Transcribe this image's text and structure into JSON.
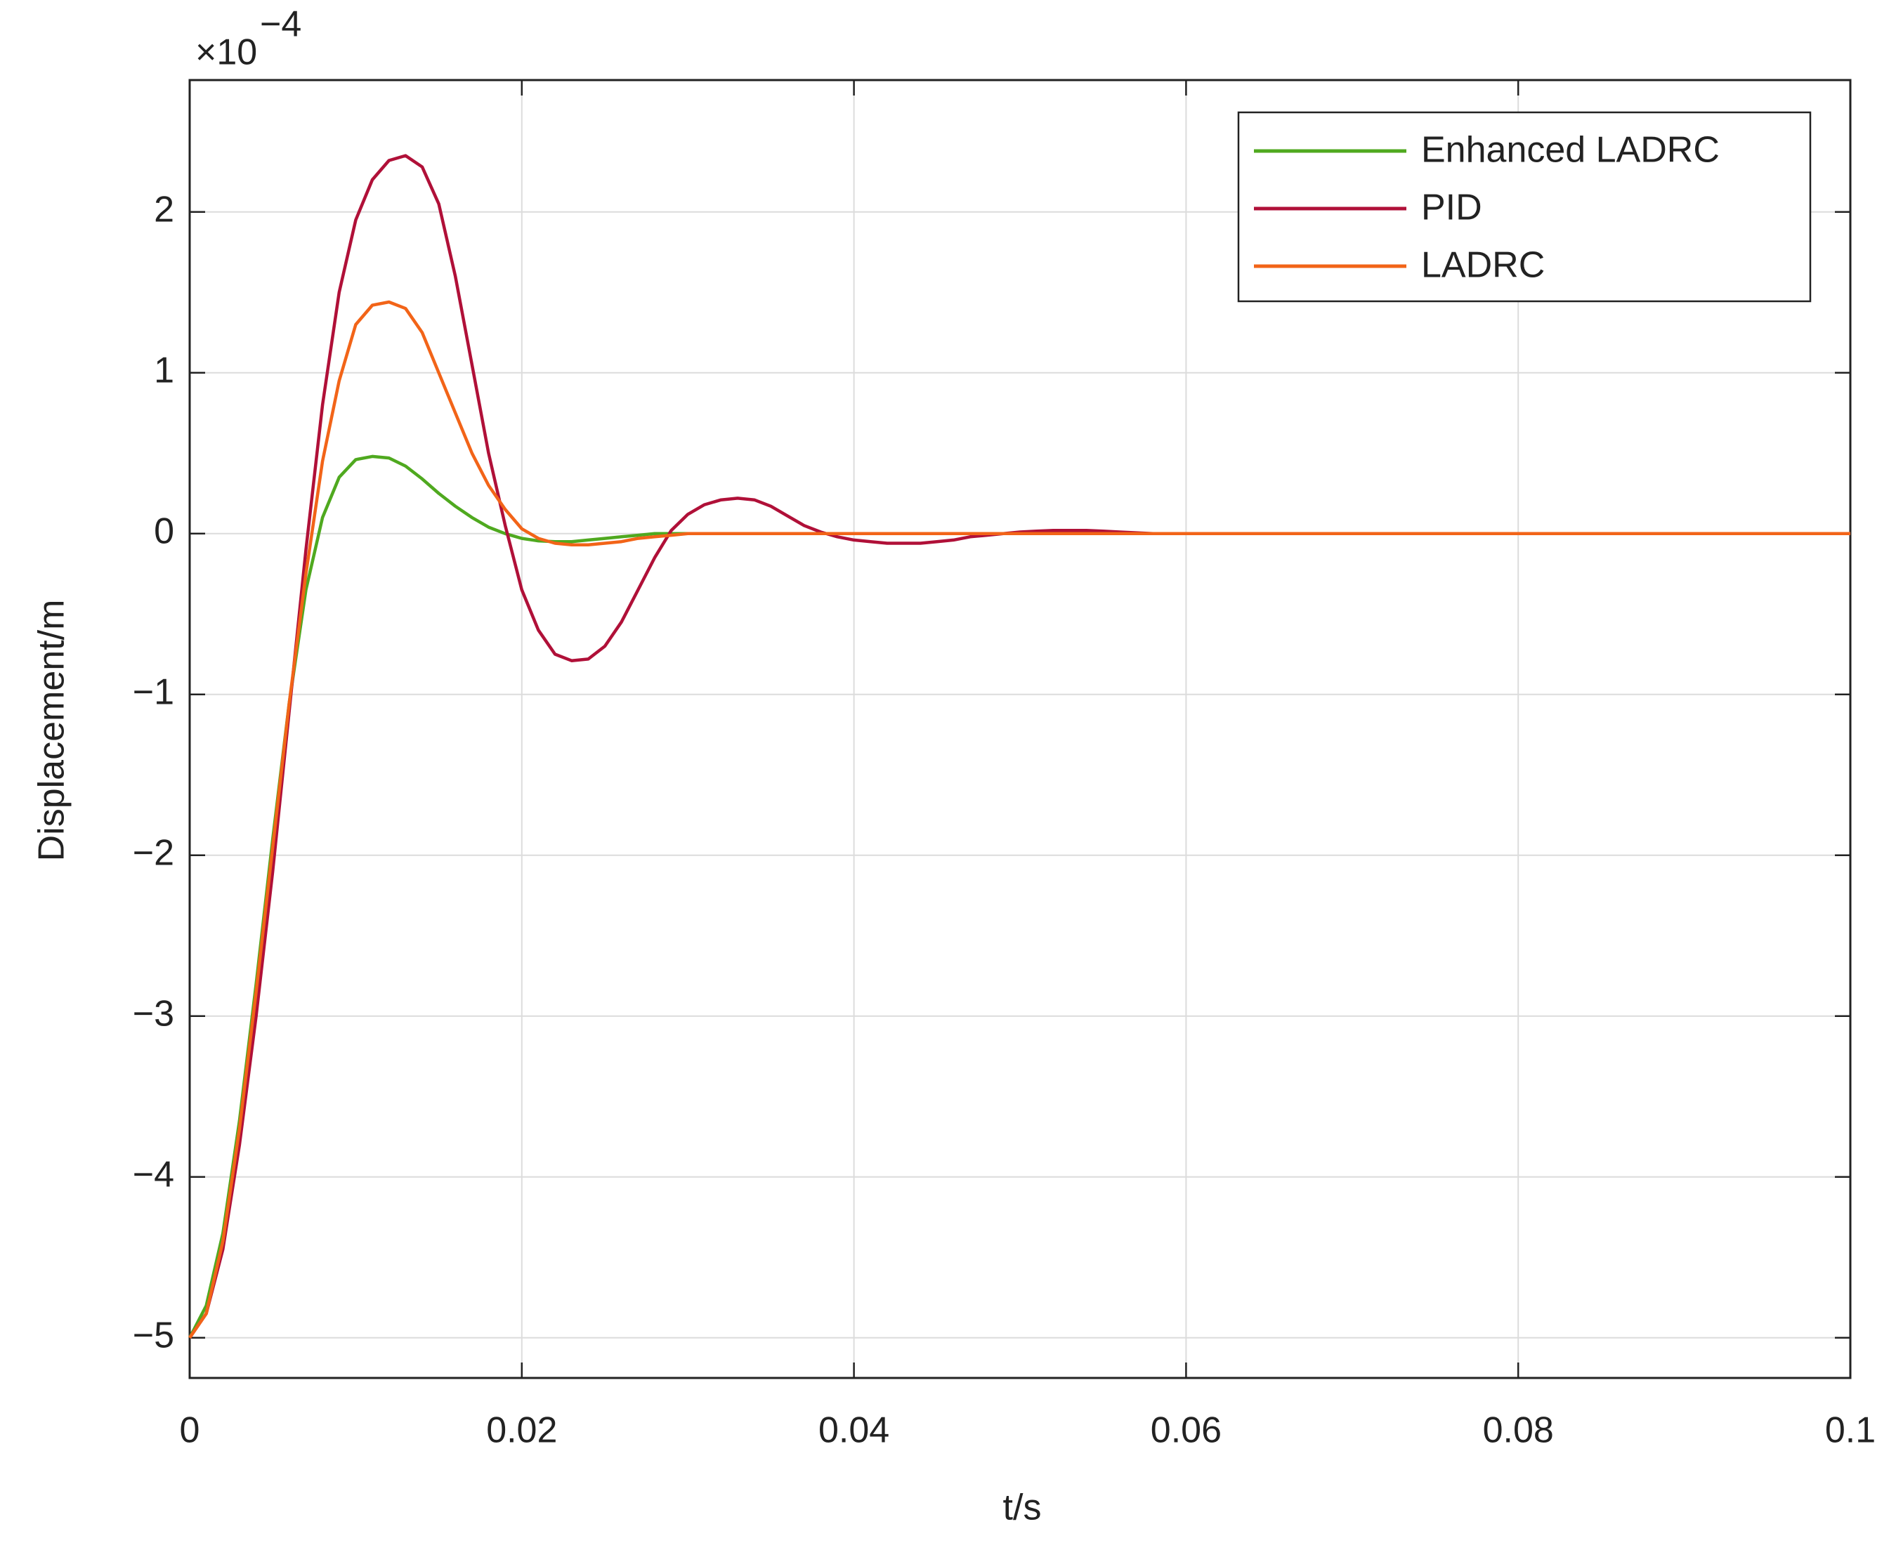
{
  "chart_data": {
    "type": "line",
    "xlabel": "t/s",
    "ylabel": "Displacement/m",
    "y_multiplier": {
      "base": "×10",
      "exponent": "−4"
    },
    "x": [
      0,
      0.001,
      0.002,
      0.003,
      0.004,
      0.005,
      0.006,
      0.007,
      0.008,
      0.009,
      0.01,
      0.011,
      0.012,
      0.013,
      0.014,
      0.015,
      0.016,
      0.017,
      0.018,
      0.019,
      0.02,
      0.021,
      0.022,
      0.023,
      0.024,
      0.025,
      0.026,
      0.027,
      0.028,
      0.029,
      0.03,
      0.031,
      0.032,
      0.033,
      0.034,
      0.035,
      0.036,
      0.037,
      0.038,
      0.039,
      0.04,
      0.041,
      0.042,
      0.043,
      0.044,
      0.045,
      0.046,
      0.047,
      0.048,
      0.049,
      0.05,
      0.051,
      0.052,
      0.053,
      0.054,
      0.055,
      0.056,
      0.057,
      0.058,
      0.059,
      0.06,
      0.07,
      0.08,
      0.09,
      0.1
    ],
    "series": [
      {
        "name": "Enhanced LADRC",
        "color": "#4fa91f",
        "values": [
          -5,
          -4.8,
          -4.35,
          -3.65,
          -2.8,
          -1.9,
          -1.05,
          -0.35,
          0.1,
          0.35,
          0.46,
          0.48,
          0.47,
          0.42,
          0.34,
          0.25,
          0.17,
          0.1,
          0.04,
          0,
          -0.03,
          -0.045,
          -0.05,
          -0.05,
          -0.04,
          -0.03,
          -0.02,
          -0.01,
          0,
          0,
          0,
          0,
          0,
          0,
          0,
          0,
          0,
          0,
          0,
          0,
          0,
          0,
          0,
          0,
          0,
          0,
          0,
          0,
          0,
          0,
          0,
          0,
          0,
          0,
          0,
          0,
          0,
          0,
          0,
          0,
          0,
          0,
          0,
          0,
          0
        ]
      },
      {
        "name": "PID",
        "color": "#b01038",
        "values": [
          -5,
          -4.85,
          -4.45,
          -3.8,
          -3.0,
          -2.1,
          -1.1,
          -0.1,
          0.8,
          1.5,
          1.95,
          2.2,
          2.32,
          2.35,
          2.28,
          2.05,
          1.6,
          1.05,
          0.5,
          0.05,
          -0.35,
          -0.6,
          -0.75,
          -0.79,
          -0.78,
          -0.7,
          -0.55,
          -0.35,
          -0.15,
          0.02,
          0.12,
          0.18,
          0.21,
          0.22,
          0.21,
          0.17,
          0.11,
          0.05,
          0.01,
          -0.02,
          -0.04,
          -0.05,
          -0.06,
          -0.06,
          -0.06,
          -0.05,
          -0.04,
          -0.02,
          -0.01,
          0,
          0.01,
          0.015,
          0.02,
          0.02,
          0.02,
          0.015,
          0.01,
          0.005,
          0,
          0,
          0,
          0,
          0,
          0,
          0
        ]
      },
      {
        "name": "LADRC",
        "color": "#f26418",
        "values": [
          -5,
          -4.85,
          -4.4,
          -3.7,
          -2.85,
          -1.95,
          -1.05,
          -0.25,
          0.45,
          0.95,
          1.3,
          1.42,
          1.44,
          1.4,
          1.25,
          1.0,
          0.75,
          0.5,
          0.3,
          0.15,
          0.03,
          -0.03,
          -0.06,
          -0.07,
          -0.07,
          -0.06,
          -0.05,
          -0.03,
          -0.02,
          -0.01,
          0,
          0,
          0,
          0,
          0,
          0,
          0,
          0,
          0,
          0,
          0,
          0,
          0,
          0,
          0,
          0,
          0,
          0,
          0,
          0,
          0,
          0,
          0,
          0,
          0,
          0,
          0,
          0,
          0,
          0,
          0,
          0,
          0,
          0,
          0
        ]
      }
    ],
    "xlim": [
      0,
      0.1
    ],
    "xticks": [
      0,
      0.02,
      0.04,
      0.06,
      0.08,
      0.1
    ],
    "ylim": [
      -5.25,
      2.82
    ],
    "yticks": [
      {
        "value": -5,
        "label": "−5"
      },
      {
        "value": -4,
        "label": "−4"
      },
      {
        "value": -3,
        "label": "−3"
      },
      {
        "value": -2,
        "label": "−2"
      },
      {
        "value": -1,
        "label": "−1"
      },
      0,
      1,
      2
    ],
    "grid": true,
    "legend": "northeast"
  }
}
